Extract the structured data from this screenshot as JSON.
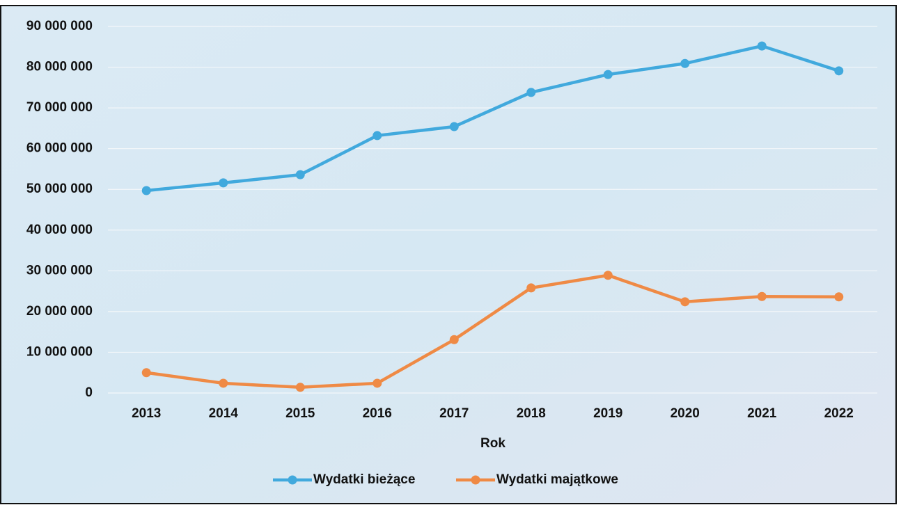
{
  "chart_data": {
    "type": "line",
    "x_label": "Rok",
    "categories": [
      "2013",
      "2014",
      "2015",
      "2016",
      "2017",
      "2018",
      "2019",
      "2020",
      "2021",
      "2022"
    ],
    "series": [
      {
        "name": "Wydatki bieżące",
        "color": "#41a9dd",
        "values": [
          49700000,
          51600000,
          53600000,
          63200000,
          65400000,
          73800000,
          78200000,
          80900000,
          85200000,
          79100000
        ]
      },
      {
        "name": "Wydatki majątkowe",
        "color": "#ef8a45",
        "values": [
          5000000,
          2400000,
          1400000,
          2400000,
          13100000,
          25800000,
          28900000,
          22400000,
          23700000,
          23600000
        ]
      }
    ],
    "ylim": [
      0,
      90000000
    ],
    "yticks": [
      {
        "value": 0,
        "label": "0"
      },
      {
        "value": 10000000,
        "label": "10 000 000"
      },
      {
        "value": 20000000,
        "label": "20 000 000"
      },
      {
        "value": 30000000,
        "label": "30 000 000"
      },
      {
        "value": 40000000,
        "label": "40 000 000"
      },
      {
        "value": 50000000,
        "label": "50 000 000"
      },
      {
        "value": 60000000,
        "label": "60 000 000"
      },
      {
        "value": 70000000,
        "label": "70 000 000"
      },
      {
        "value": 80000000,
        "label": "80 000 000"
      },
      {
        "value": 90000000,
        "label": "90 000 000"
      }
    ],
    "grid": true,
    "legend": "bottom"
  }
}
